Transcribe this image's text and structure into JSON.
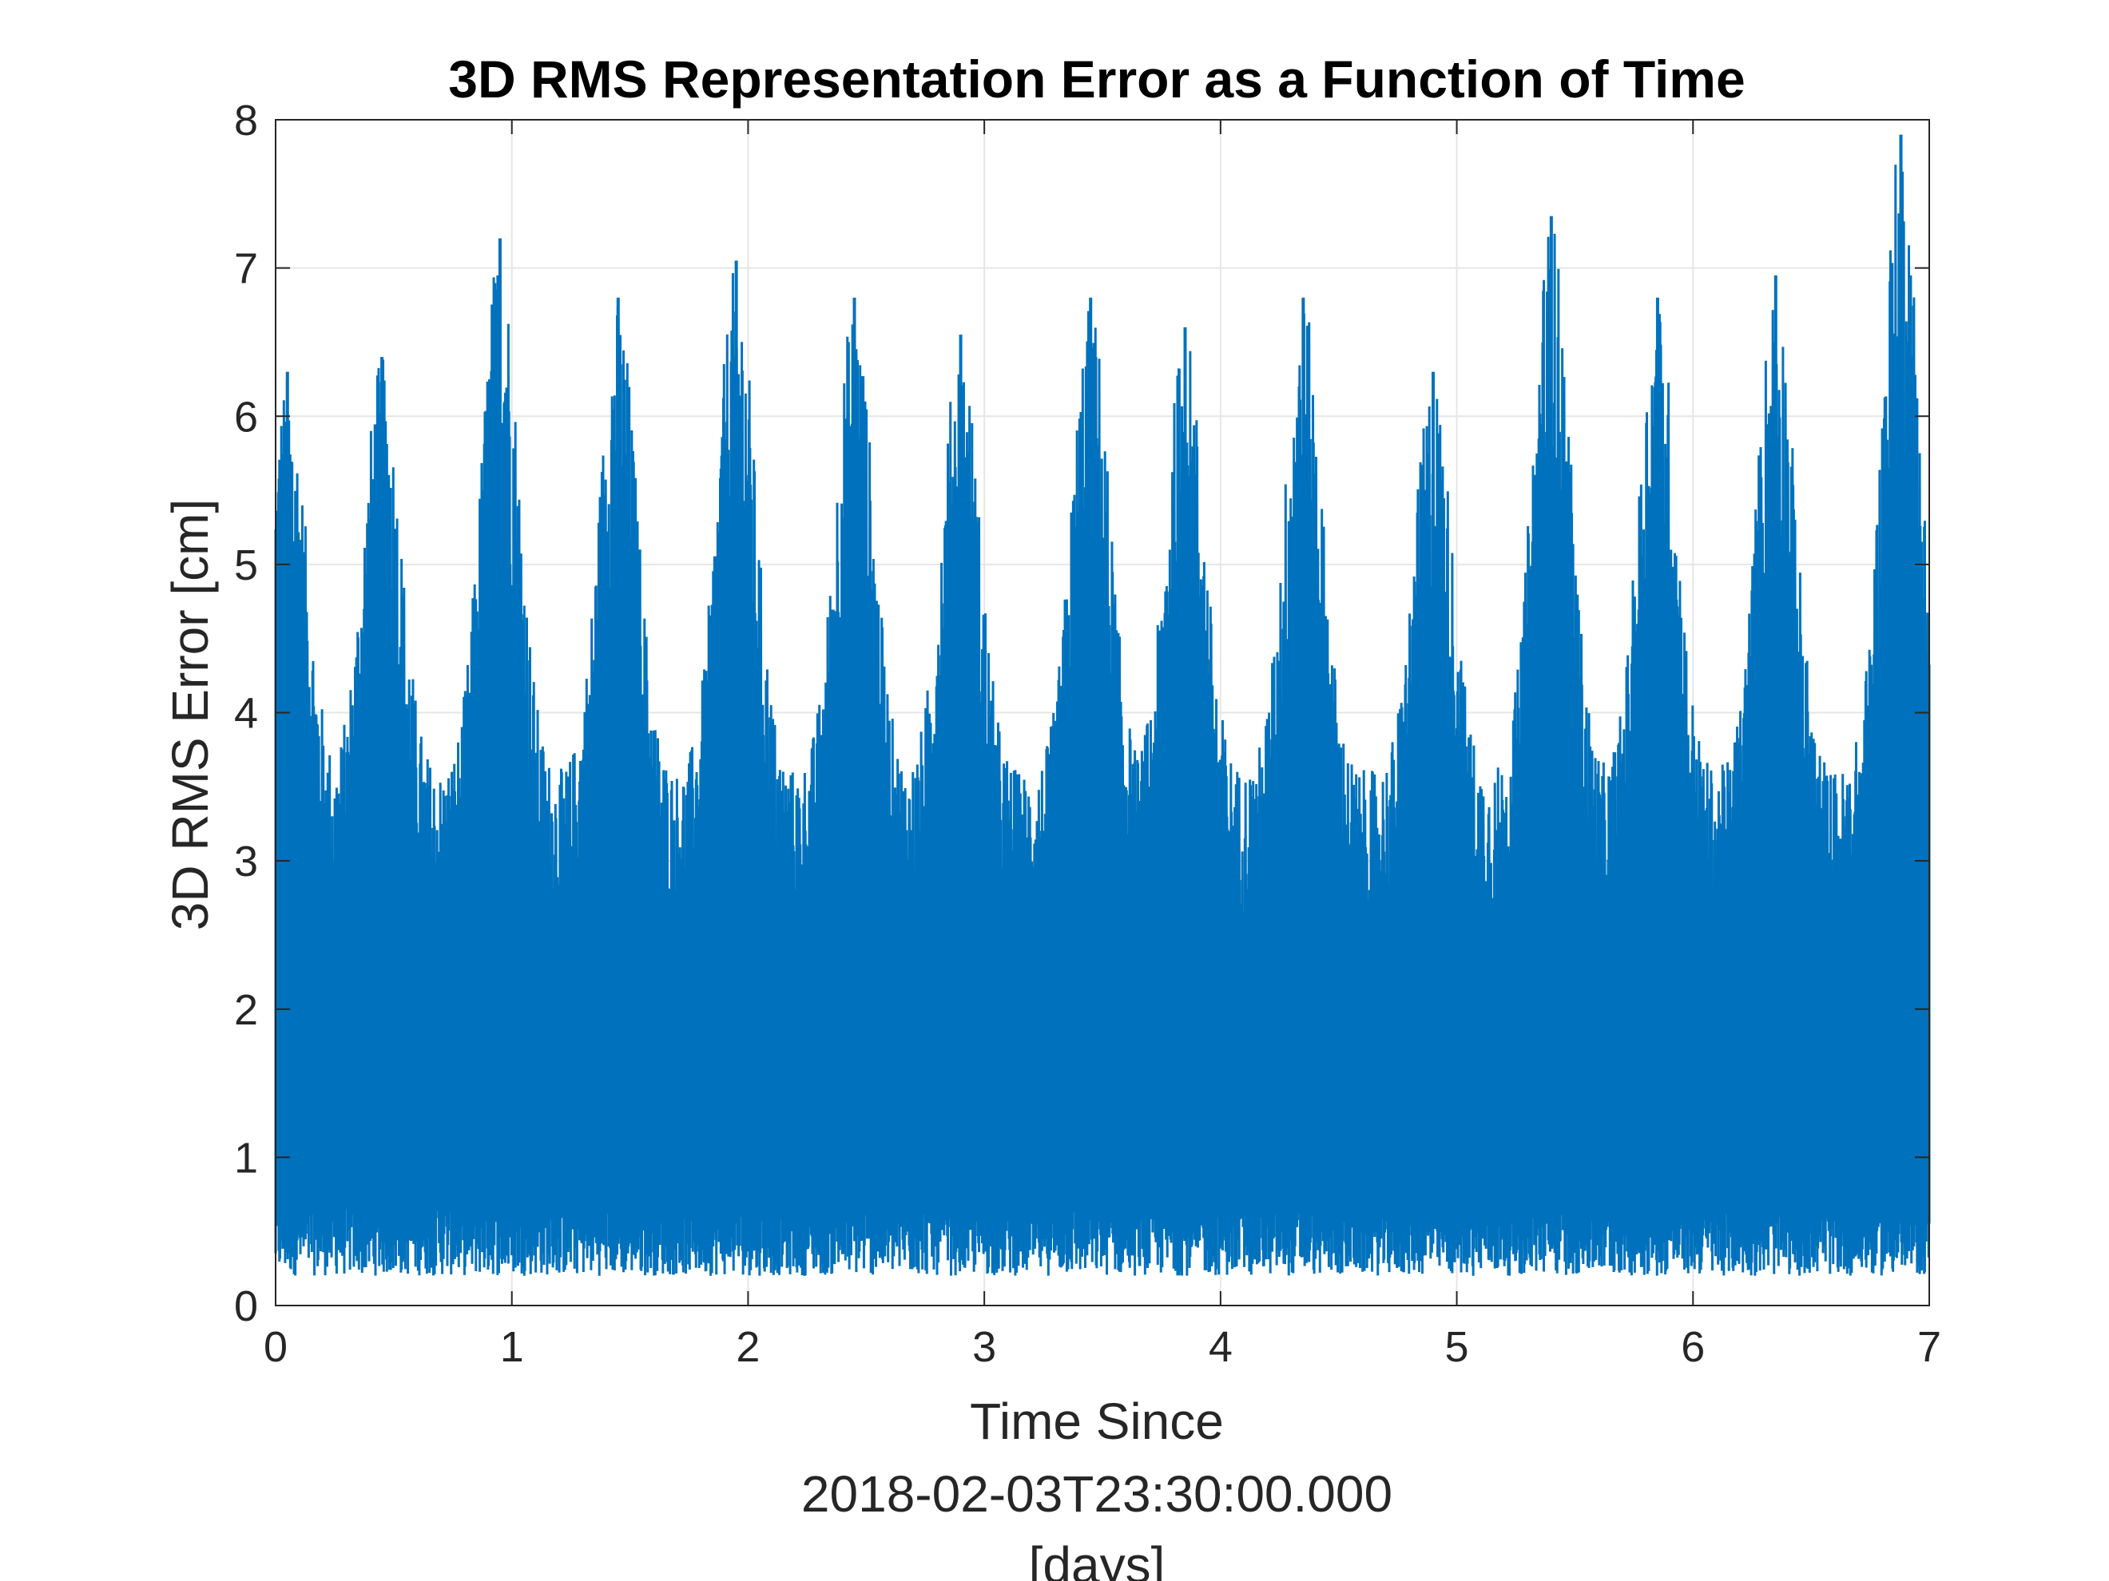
{
  "chart_data": {
    "type": "line",
    "title": "3D RMS Representation Error as a Function of Time",
    "xlabel_lines": [
      "Time Since",
      "2018-02-03T23:30:00.000",
      "[days]"
    ],
    "ylabel": "3D RMS Error [cm]",
    "xlim": [
      0,
      7
    ],
    "ylim": [
      0,
      8
    ],
    "x_ticks": [
      "0",
      "1",
      "2",
      "3",
      "4",
      "5",
      "6",
      "7"
    ],
    "y_ticks": [
      "0",
      "1",
      "2",
      "3",
      "4",
      "5",
      "6",
      "7",
      "8"
    ],
    "grid": true,
    "legend": "none",
    "series": [
      {
        "color": "#0072BD",
        "description_of_signal": "high-frequency oscillation between ~0.2 and ~4 cm with diurnal peaks",
        "envelope_peaks": [
          {
            "x": 0.05,
            "y": 6.3
          },
          {
            "x": 0.45,
            "y": 6.4
          },
          {
            "x": 0.95,
            "y": 7.2
          },
          {
            "x": 1.45,
            "y": 6.8
          },
          {
            "x": 1.95,
            "y": 7.05
          },
          {
            "x": 2.45,
            "y": 6.8
          },
          {
            "x": 2.9,
            "y": 6.55
          },
          {
            "x": 3.45,
            "y": 6.8
          },
          {
            "x": 3.85,
            "y": 6.6
          },
          {
            "x": 4.35,
            "y": 6.8
          },
          {
            "x": 4.9,
            "y": 6.3
          },
          {
            "x": 5.4,
            "y": 7.35
          },
          {
            "x": 5.85,
            "y": 6.8
          },
          {
            "x": 6.35,
            "y": 6.95
          },
          {
            "x": 6.88,
            "y": 7.9
          }
        ],
        "lower_envelope": 0.2,
        "dense_band_top": 3.6
      }
    ]
  }
}
